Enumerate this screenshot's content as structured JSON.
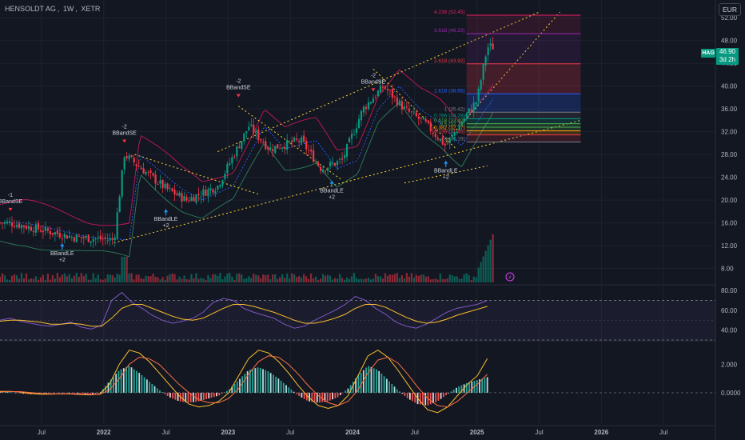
{
  "header": {
    "symbol": "HENSOLDT AG",
    "interval": "1W",
    "exchange": "XETR",
    "currency_button": "EUR"
  },
  "last_price": {
    "ticker": "HAG",
    "value": "46.90",
    "countdown": "3d 2h"
  },
  "chart_data": [
    {
      "type": "candlestick",
      "pane": "price",
      "y_ticks": [
        "52.00",
        "48.00",
        "44.00",
        "40.00",
        "36.00",
        "32.00",
        "28.00",
        "24.00",
        "20.00",
        "16.00",
        "12.00",
        "8.00"
      ],
      "ylim": [
        6,
        54
      ],
      "x_ticks": [
        "Jul",
        "2022",
        "Jul",
        "2023",
        "Jul",
        "2024",
        "Jul",
        "2025",
        "Jul",
        "2026",
        "Jul"
      ],
      "xlim": [
        "2021-03",
        "2026-12"
      ],
      "close_series_approx": [
        {
          "x": "2021-04",
          "y": 16.0
        },
        {
          "x": "2021-07",
          "y": 14.8
        },
        {
          "x": "2021-10",
          "y": 13.5
        },
        {
          "x": "2022-02",
          "y": 13.0
        },
        {
          "x": "2022-03",
          "y": 28.0
        },
        {
          "x": "2022-05",
          "y": 25.0
        },
        {
          "x": "2022-07",
          "y": 22.0
        },
        {
          "x": "2022-09",
          "y": 20.0
        },
        {
          "x": "2022-12",
          "y": 22.5
        },
        {
          "x": "2023-03",
          "y": 33.0
        },
        {
          "x": "2023-05",
          "y": 29.0
        },
        {
          "x": "2023-08",
          "y": 30.5
        },
        {
          "x": "2023-10",
          "y": 25.5
        },
        {
          "x": "2023-12",
          "y": 27.0
        },
        {
          "x": "2024-02",
          "y": 36.0
        },
        {
          "x": "2024-04",
          "y": 40.0
        },
        {
          "x": "2024-06",
          "y": 36.0
        },
        {
          "x": "2024-08",
          "y": 33.5
        },
        {
          "x": "2024-10",
          "y": 29.5
        },
        {
          "x": "2024-12",
          "y": 35.0
        },
        {
          "x": "2025-01",
          "y": 37.5
        },
        {
          "x": "2025-02",
          "y": 46.9
        }
      ],
      "signals": [
        {
          "label": "BBandSE",
          "count": "-1",
          "x": "2021-04",
          "y": 17.5,
          "direction": "sell"
        },
        {
          "label": "BBandLE",
          "count": "+2",
          "x": "2021-09",
          "y": 13.0,
          "direction": "buy"
        },
        {
          "label": "BBandSE",
          "count": "-2",
          "x": "2022-03",
          "y": 29.5,
          "direction": "sell"
        },
        {
          "label": "BBandLE",
          "count": "+2",
          "x": "2022-07",
          "y": 19.0,
          "direction": "buy"
        },
        {
          "label": "BBandSE",
          "count": "-2",
          "x": "2023-02",
          "y": 37.5,
          "direction": "sell"
        },
        {
          "label": "BBandLE",
          "count": "+2",
          "x": "2023-11",
          "y": 24.0,
          "direction": "buy"
        },
        {
          "label": "BBandSE",
          "count": "-2",
          "x": "2024-03",
          "y": 38.5,
          "direction": "sell"
        },
        {
          "label": "BBandLE",
          "count": "+2",
          "x": "2024-10",
          "y": 27.5,
          "direction": "buy"
        }
      ],
      "fibonacci_levels": [
        {
          "label": "4.236 (52.45)",
          "value": 52.45,
          "color": "#e91e63"
        },
        {
          "label": "3.618 (49.20)",
          "value": 49.2,
          "color": "#9c27b0"
        },
        {
          "label": "2.618 (43.92)",
          "value": 43.92,
          "color": "#f23645"
        },
        {
          "label": "1.618 (38.65)",
          "value": 38.65,
          "color": "#2962ff"
        },
        {
          "label": "1 (35.42)",
          "value": 35.42,
          "color": "#787b86"
        },
        {
          "label": "0.786 (34.28)",
          "value": 34.28,
          "color": "#089981"
        },
        {
          "label": "0.618 (33.40)",
          "value": 33.4,
          "color": "#4caf50"
        },
        {
          "label": "0.5 (32.79)",
          "value": 32.79,
          "color": "#4caf50"
        },
        {
          "label": "0.382 (32.17)",
          "value": 32.17,
          "color": "#ff9800"
        },
        {
          "label": "0.236 (31.45)",
          "value": 31.45,
          "color": "#f23645"
        },
        {
          "label": "0 (30.19)",
          "value": 30.19,
          "color": "#787b86"
        }
      ]
    },
    {
      "type": "line",
      "pane": "rsi",
      "y_ticks": [
        "80.00",
        "60.00",
        "40.00"
      ],
      "ylim": [
        30,
        85
      ],
      "series": [
        {
          "values": [
            50,
            52,
            49,
            47,
            45,
            44,
            46,
            48,
            43,
            41,
            45,
            70,
            78,
            68,
            62,
            55,
            50,
            47,
            49,
            52,
            58,
            68,
            72,
            70,
            62,
            58,
            55,
            52,
            46,
            42,
            44,
            50,
            55,
            60,
            66,
            74,
            70,
            62,
            56,
            48,
            44,
            42,
            46,
            52,
            58,
            62,
            64,
            66,
            70
          ],
          "color": "#7e57c2"
        },
        {
          "values": [
            49,
            50,
            50,
            49,
            48,
            46,
            46,
            47,
            46,
            44,
            44,
            52,
            62,
            66,
            66,
            62,
            58,
            54,
            51,
            50,
            52,
            57,
            62,
            66,
            66,
            64,
            61,
            58,
            54,
            50,
            47,
            47,
            49,
            52,
            56,
            62,
            66,
            66,
            63,
            58,
            53,
            49,
            47,
            48,
            51,
            55,
            58,
            61,
            64
          ],
          "color": "#fbc02d"
        }
      ]
    },
    {
      "type": "histogram",
      "pane": "macd",
      "y_ticks": [
        "2.000",
        "0.0000"
      ],
      "ylim": [
        -2.2,
        3.6
      ],
      "histogram": [
        0.1,
        0.05,
        -0.05,
        -0.1,
        -0.08,
        -0.05,
        0.0,
        -0.05,
        -0.1,
        -0.15,
        -0.05,
        0.8,
        1.6,
        1.9,
        1.4,
        0.8,
        0.2,
        -0.3,
        -0.6,
        -0.7,
        -0.6,
        -0.4,
        -0.2,
        0.2,
        0.9,
        1.6,
        1.8,
        1.5,
        1.0,
        0.4,
        -0.2,
        -0.6,
        -0.7,
        -0.6,
        -0.3,
        0.3,
        1.2,
        1.9,
        1.6,
        0.9,
        0.2,
        -0.4,
        -0.8,
        -0.9,
        -0.6,
        -0.1,
        0.4,
        0.7,
        0.9,
        1.1
      ],
      "series": [
        {
          "values": [
            0.1,
            0.1,
            0.05,
            -0.05,
            -0.1,
            -0.1,
            -0.08,
            -0.08,
            -0.12,
            -0.15,
            -0.1,
            0.6,
            2.0,
            3.0,
            2.8,
            2.2,
            1.4,
            0.6,
            -0.2,
            -0.8,
            -1.0,
            -0.9,
            -0.6,
            0.0,
            1.2,
            2.4,
            3.0,
            2.8,
            2.2,
            1.4,
            0.5,
            -0.3,
            -0.9,
            -1.1,
            -0.9,
            -0.2,
            1.2,
            2.6,
            3.0,
            2.5,
            1.6,
            0.6,
            -0.4,
            -1.2,
            -1.4,
            -1.0,
            -0.2,
            0.6,
            1.2,
            2.4
          ],
          "color": "#fbc02d"
        },
        {
          "values": [
            0.05,
            0.08,
            0.08,
            0.02,
            -0.05,
            -0.08,
            -0.08,
            -0.08,
            -0.1,
            -0.12,
            -0.12,
            0.2,
            1.0,
            2.0,
            2.5,
            2.4,
            2.0,
            1.3,
            0.6,
            0.0,
            -0.5,
            -0.7,
            -0.7,
            -0.4,
            0.3,
            1.3,
            2.2,
            2.6,
            2.5,
            2.0,
            1.3,
            0.5,
            -0.2,
            -0.7,
            -0.9,
            -0.6,
            0.2,
            1.4,
            2.3,
            2.5,
            2.1,
            1.3,
            0.4,
            -0.4,
            -0.9,
            -1.0,
            -0.6,
            0.0,
            0.6,
            1.3
          ],
          "color": "#ff7043"
        }
      ]
    }
  ]
}
